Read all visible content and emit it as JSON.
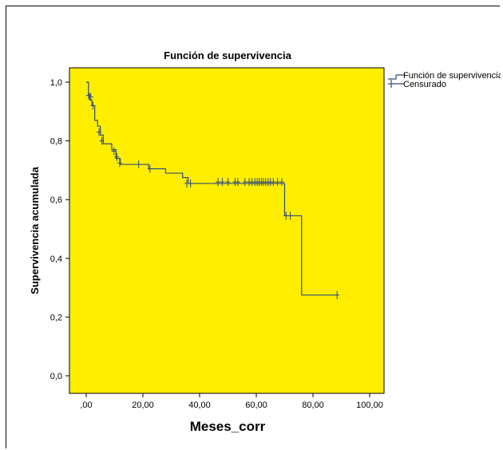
{
  "chart_data": {
    "type": "line",
    "title": "Función de supervivencia",
    "xlabel": "Meses_corr",
    "ylabel": "Supervivencia acumulada",
    "xlim": [
      0,
      100
    ],
    "ylim": [
      0,
      1.0
    ],
    "x_ticks": [
      0,
      20,
      40,
      60,
      80,
      100
    ],
    "x_tick_labels": [
      ",00",
      "20,00",
      "40,00",
      "60,00",
      "80,00",
      "100,00"
    ],
    "y_ticks": [
      0,
      0.2,
      0.4,
      0.6,
      0.8,
      1.0
    ],
    "y_tick_labels": [
      "0,0",
      "0,2",
      "0,4",
      "0,6",
      "0,8",
      "1,0"
    ],
    "grid": false,
    "legend_position": "top-right, outside plot",
    "colors": {
      "plot_background": "#ffee00",
      "line": "#2f4d7a",
      "censored": "#2f4d7a"
    },
    "series": [
      {
        "name": "Función de supervivencia",
        "kind": "step",
        "x": [
          0,
          0.8,
          1.2,
          2,
          3,
          4,
          5,
          6,
          9,
          10.5,
          12,
          22,
          28,
          34,
          36,
          70,
          76,
          88.5
        ],
        "y": [
          1.0,
          0.96,
          0.94,
          0.92,
          0.87,
          0.85,
          0.82,
          0.79,
          0.77,
          0.74,
          0.72,
          0.705,
          0.69,
          0.675,
          0.655,
          0.545,
          0.275,
          0.275
        ]
      },
      {
        "name": "Censurado",
        "kind": "censored-marks",
        "x": [
          0.8,
          1.6,
          2.4,
          4.5,
          5.5,
          9.8,
          10.8,
          11.8,
          18.5,
          22.5,
          35.5,
          36.8,
          46.5,
          48,
          50,
          52.5,
          53.5,
          56,
          57.5,
          58.5,
          59.5,
          60.3,
          61,
          61.8,
          62.5,
          63.3,
          64.2,
          65,
          66,
          67.5,
          69,
          70.5,
          72,
          88.5
        ],
        "y": [
          0.955,
          0.95,
          0.92,
          0.83,
          0.8,
          0.765,
          0.745,
          0.725,
          0.72,
          0.705,
          0.655,
          0.655,
          0.66,
          0.66,
          0.66,
          0.66,
          0.66,
          0.66,
          0.66,
          0.66,
          0.66,
          0.66,
          0.66,
          0.66,
          0.66,
          0.66,
          0.66,
          0.66,
          0.66,
          0.66,
          0.66,
          0.545,
          0.545,
          0.275
        ]
      }
    ]
  }
}
